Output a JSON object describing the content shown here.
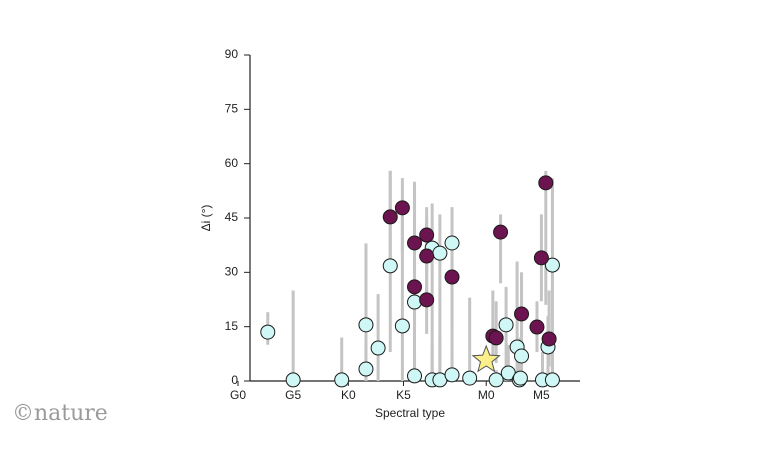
{
  "chart_data": {
    "type": "scatter",
    "xlabel": "Spectral type",
    "ylabel": "Δi (°)",
    "xlim": [
      0,
      31
    ],
    "ylim": [
      0,
      90
    ],
    "xticks": [
      {
        "value": 0,
        "label": "G0"
      },
      {
        "value": 5,
        "label": "G5"
      },
      {
        "value": 10,
        "label": "K0"
      },
      {
        "value": 15,
        "label": "K5"
      },
      {
        "value": 22.5,
        "label": "M0"
      },
      {
        "value": 27.5,
        "label": "M5"
      }
    ],
    "yticks": [
      0,
      15,
      30,
      45,
      60,
      75,
      90
    ],
    "errorbar_color": "#c4c4c4",
    "series": [
      {
        "color": "#cff7f6",
        "x": [
          2.7,
          5.0,
          9.4,
          11.6,
          11.6,
          12.7,
          13.8,
          14.9,
          16.0,
          16.0,
          17.6,
          18.3,
          17.6,
          18.3,
          19.4,
          19.4,
          21.0,
          23.4,
          24.3,
          24.5,
          25.3,
          25.7,
          25.5,
          25.6,
          27.6,
          28.1,
          28.5,
          28.5
        ],
        "values": [
          13.5,
          0.3,
          0.3,
          15.5,
          3.3,
          9.1,
          31.8,
          15.2,
          21.8,
          1.4,
          36.7,
          35.3,
          0.3,
          0.3,
          38.1,
          1.7,
          0.8,
          0.3,
          15.5,
          2.2,
          9.4,
          6.9,
          0.3,
          0.8,
          0.3,
          9.4,
          32.0,
          0.3
        ],
        "low": [
          10,
          0,
          0,
          0,
          0,
          0,
          8,
          0,
          0,
          0,
          0,
          0,
          0,
          0,
          0,
          0,
          0,
          0,
          0,
          0,
          0,
          0,
          0,
          0,
          0,
          0,
          0,
          0
        ],
        "high": [
          19,
          25,
          12,
          38,
          10,
          24,
          58,
          47,
          54,
          8,
          49,
          46,
          10,
          12,
          48,
          9,
          23,
          3,
          26,
          10,
          33,
          30,
          8,
          12,
          8,
          18,
          56,
          10
        ]
      },
      {
        "color": "#6c144f",
        "x": [
          13.8,
          14.9,
          16.0,
          16.0,
          17.1,
          17.1,
          17.1,
          19.4,
          23.1,
          23.4,
          23.8,
          25.7,
          27.1,
          27.5,
          27.9,
          28.2
        ],
        "values": [
          45.3,
          47.8,
          38.1,
          26.0,
          40.3,
          34.5,
          22.4,
          28.7,
          12.4,
          11.9,
          41.1,
          18.5,
          14.9,
          34.0,
          54.7,
          11.6
        ],
        "low": [
          33,
          35,
          22,
          14,
          30,
          20,
          13,
          15,
          6,
          5,
          27,
          8,
          8,
          22,
          21,
          4
        ],
        "high": [
          58,
          56,
          55,
          38,
          48,
          45,
          33,
          40,
          25,
          22,
          46,
          30,
          22,
          46,
          58,
          25
        ]
      }
    ],
    "highlight": {
      "x": 22.5,
      "value": 5.8,
      "color": "#fbf08a"
    },
    "watermark": "©nature"
  }
}
